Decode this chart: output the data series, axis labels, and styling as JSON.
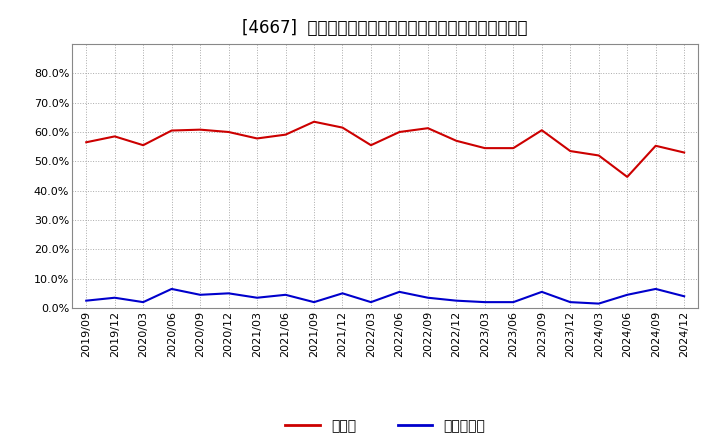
{
  "title": "[4667]  現預金、有利子負債の総資産に対する比率の推移",
  "x_labels": [
    "2019/09",
    "2019/12",
    "2020/03",
    "2020/06",
    "2020/09",
    "2020/12",
    "2021/03",
    "2021/06",
    "2021/09",
    "2021/12",
    "2022/03",
    "2022/06",
    "2022/09",
    "2022/12",
    "2023/03",
    "2023/06",
    "2023/09",
    "2023/12",
    "2024/03",
    "2024/06",
    "2024/09",
    "2024/12"
  ],
  "cash_values": [
    0.565,
    0.585,
    0.555,
    0.605,
    0.608,
    0.6,
    0.578,
    0.591,
    0.635,
    0.615,
    0.555,
    0.6,
    0.613,
    0.57,
    0.545,
    0.545,
    0.606,
    0.535,
    0.52,
    0.447,
    0.553,
    0.53
  ],
  "debt_values": [
    0.025,
    0.035,
    0.02,
    0.065,
    0.045,
    0.05,
    0.035,
    0.045,
    0.02,
    0.05,
    0.02,
    0.055,
    0.035,
    0.025,
    0.02,
    0.02,
    0.055,
    0.02,
    0.015,
    0.045,
    0.065,
    0.04
  ],
  "cash_color": "#cc0000",
  "debt_color": "#0000cc",
  "background_color": "#ffffff",
  "plot_bg_color": "#ffffff",
  "grid_color": "#aaaaaa",
  "title_fontsize": 12,
  "legend_labels": [
    "現預金",
    "有利子負債"
  ],
  "ylim": [
    0.0,
    0.9
  ],
  "yticks": [
    0.0,
    0.1,
    0.2,
    0.3,
    0.4,
    0.5,
    0.6,
    0.7,
    0.8
  ]
}
